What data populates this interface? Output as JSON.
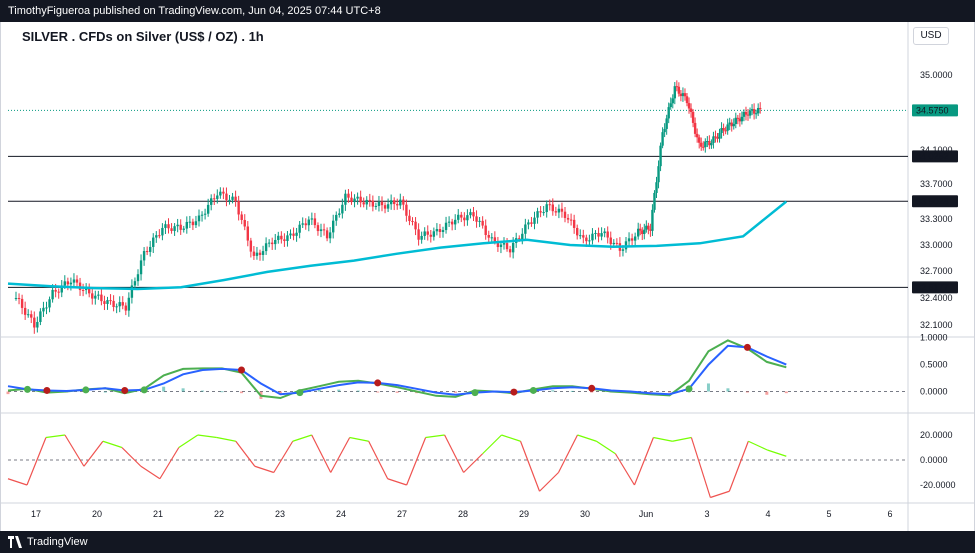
{
  "header": {
    "published": "TimothyFigueroa published on TradingView.com, Jun 04, 2025 07:44 UTC+8"
  },
  "footer": {
    "brand": "TradingView"
  },
  "chart_data": [
    {
      "type": "candlestick",
      "title": "SILVER . CFDs on Silver (US$ / OZ) . 1h",
      "currency": "USD",
      "y_ticks": [
        "35.0000",
        "34.1000",
        "33.7000",
        "33.3000",
        "33.0000",
        "32.7000",
        "32.4000",
        "32.1000"
      ],
      "ylim": [
        32.0,
        35.2
      ],
      "last_price": {
        "label": "34.5750",
        "value": 34.575,
        "color": "#089981"
      },
      "horizontal_lines": [
        {
          "label": "34.0252",
          "value": 34.0252
        },
        {
          "label": "33.5028",
          "value": 33.5028
        },
        {
          "label": "32.5177",
          "value": 32.5177
        }
      ],
      "moving_average": {
        "color": "#00bcd4",
        "values": [
          32.56,
          32.53,
          32.51,
          32.5,
          32.52,
          32.6,
          32.69,
          32.76,
          32.82,
          32.9,
          32.97,
          33.02,
          33.06,
          33.0,
          32.98,
          32.99,
          33.02,
          33.1,
          33.5
        ]
      },
      "x_ticks": [
        "17",
        "20",
        "21",
        "22",
        "23",
        "24",
        "27",
        "28",
        "29",
        "30",
        "Jun",
        "3",
        "4",
        "5",
        "6"
      ],
      "x_tick_positions": [
        0,
        1,
        2,
        3,
        4,
        5,
        6,
        7,
        8,
        9,
        10,
        11,
        12,
        13,
        14
      ],
      "close_path": {
        "x": [
          0,
          0.3,
          0.6,
          0.9,
          1.2,
          1.5,
          1.8,
          2.1,
          2.4,
          2.7,
          3.0,
          3.3,
          3.6,
          3.9,
          4.2,
          4.5,
          4.8,
          5.1,
          5.4,
          5.7,
          6.0,
          6.3,
          6.6,
          6.9,
          7.2,
          7.5,
          7.8,
          8.1,
          8.4,
          8.7,
          9.0,
          9.3,
          9.6,
          9.9,
          10.2,
          10.4,
          10.6,
          10.8,
          11.0,
          11.2,
          11.4,
          11.6,
          11.8,
          12.0,
          12.2
        ],
        "y": [
          32.4,
          32.1,
          32.45,
          32.6,
          32.45,
          32.35,
          32.3,
          32.9,
          33.2,
          33.2,
          33.3,
          33.6,
          33.5,
          32.85,
          33.05,
          33.1,
          33.3,
          33.1,
          33.55,
          33.5,
          33.45,
          33.5,
          33.1,
          33.15,
          33.3,
          33.35,
          33.05,
          32.95,
          33.25,
          33.45,
          33.35,
          33.05,
          33.15,
          32.95,
          33.15,
          33.2,
          34.3,
          34.85,
          34.7,
          34.15,
          34.2,
          34.35,
          34.45,
          34.55,
          34.575
        ]
      }
    },
    {
      "type": "line",
      "y_ticks": [
        "1.0000",
        "0.5000",
        "0.0000"
      ],
      "ylim": [
        -0.25,
        1.05
      ],
      "series": [
        {
          "color": "#4caf50",
          "values": [
            0.02,
            0.05,
            -0.02,
            0.0,
            0.04,
            0.06,
            -0.03,
            0.05,
            0.3,
            0.42,
            0.43,
            0.43,
            0.35,
            -0.08,
            -0.12,
            0.02,
            0.1,
            0.18,
            0.2,
            0.15,
            0.08,
            0.0,
            -0.08,
            -0.1,
            0.02,
            0.0,
            -0.03,
            0.04,
            0.1,
            0.1,
            0.05,
            0.0,
            -0.02,
            -0.05,
            -0.07,
            0.2,
            0.75,
            0.95,
            0.8,
            0.55,
            0.45
          ]
        },
        {
          "color": "#2962ff",
          "values": [
            0.1,
            0.04,
            0.02,
            0.01,
            0.03,
            0.06,
            0.02,
            0.03,
            0.15,
            0.32,
            0.4,
            0.42,
            0.4,
            0.15,
            -0.05,
            -0.02,
            0.05,
            0.12,
            0.17,
            0.16,
            0.12,
            0.05,
            -0.02,
            -0.06,
            -0.02,
            0.0,
            -0.01,
            0.02,
            0.06,
            0.08,
            0.06,
            0.02,
            0.0,
            -0.03,
            -0.05,
            0.05,
            0.5,
            0.85,
            0.82,
            0.65,
            0.5
          ]
        }
      ]
    },
    {
      "type": "line",
      "y_ticks": [
        "20.0000",
        "0.0000",
        "-20.0000"
      ],
      "ylim": [
        -32,
        32
      ],
      "series": [
        {
          "name": "",
          "values": [
            -15,
            -20,
            18,
            20,
            -5,
            15,
            10,
            -5,
            -15,
            10,
            20,
            18,
            15,
            -5,
            -10,
            15,
            20,
            -10,
            18,
            15,
            -15,
            -20,
            18,
            20,
            -10,
            5,
            20,
            15,
            -25,
            -10,
            20,
            15,
            5,
            -20,
            18,
            15,
            18,
            -30,
            -25,
            15,
            8,
            3
          ]
        }
      ]
    }
  ]
}
